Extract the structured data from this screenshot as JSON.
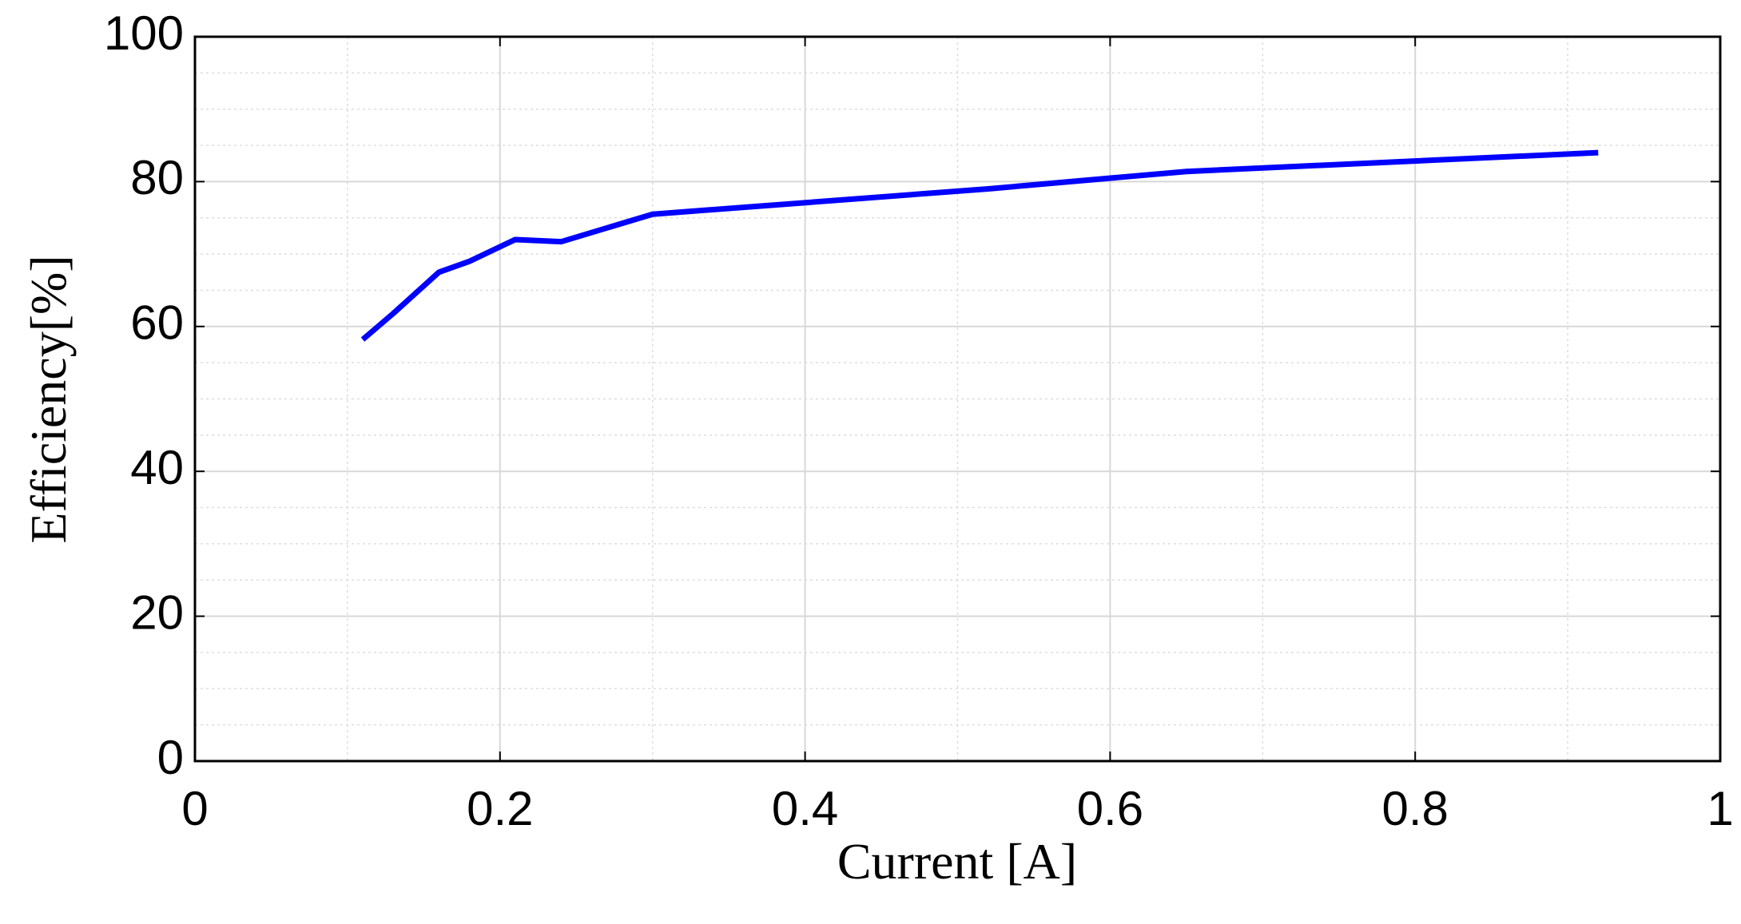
{
  "chart_data": {
    "type": "line",
    "x_label": "Current [A]",
    "y_label": "Efficiency[%]",
    "x": [
      0.11,
      0.13,
      0.16,
      0.18,
      0.21,
      0.24,
      0.3,
      0.52,
      0.65,
      0.92
    ],
    "series": [
      {
        "color": "#0000ff",
        "values": [
          58.2,
          61.8,
          67.5,
          69.0,
          72.0,
          71.7,
          75.5,
          79.0,
          81.4,
          84.0
        ]
      }
    ],
    "xlim": [
      0,
      1
    ],
    "xticks": [
      0,
      0.2,
      0.4,
      0.6,
      0.8,
      1
    ],
    "ylim": [
      0,
      100
    ],
    "yticks": [
      0,
      20,
      40,
      60,
      80,
      100
    ],
    "grid": true,
    "minor_grid": true
  }
}
